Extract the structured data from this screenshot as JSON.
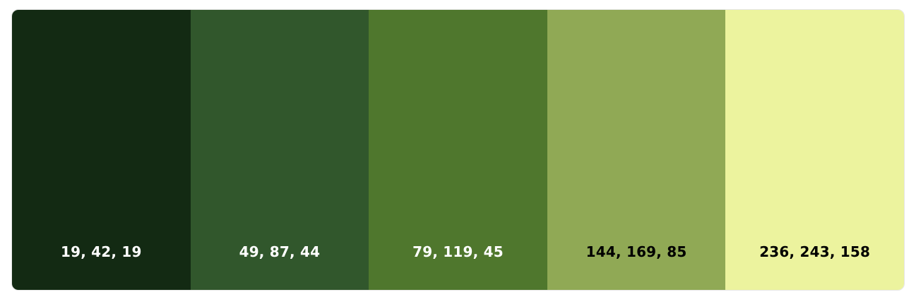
{
  "palette": {
    "swatches": [
      {
        "color": "#132a13",
        "label": "19, 42, 19",
        "text_color": "light"
      },
      {
        "color": "#31572c",
        "label": "49, 87, 44",
        "text_color": "light"
      },
      {
        "color": "#4f772d",
        "label": "79, 119, 45",
        "text_color": "light"
      },
      {
        "color": "#90a955",
        "label": "144, 169, 85",
        "text_color": "dark"
      },
      {
        "color": "#ecf39e",
        "label": "236, 243, 158",
        "text_color": "dark"
      }
    ]
  }
}
